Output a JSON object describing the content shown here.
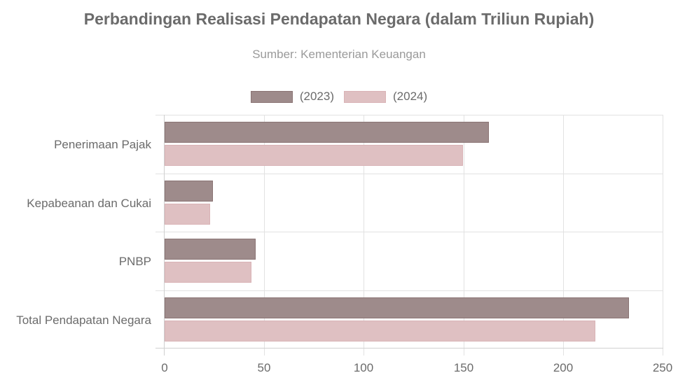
{
  "chart_data": {
    "type": "bar",
    "orientation": "horizontal",
    "title": "Perbandingan Realisasi Pendapatan Negara (dalam Triliun Rupiah)",
    "subtitle": "Sumber: Kementerian Keuangan",
    "categories": [
      "Penerimaan Pajak",
      "Kepabeanan dan Cukai",
      "PNBP",
      "Total Pendapatan Negara"
    ],
    "series": [
      {
        "name": "(2023)",
        "values": [
          162.4,
          24.1,
          45.7,
          232.4
        ],
        "color": "#9e8b8b",
        "border": "#8a7474"
      },
      {
        "name": "(2024)",
        "values": [
          149.4,
          22.9,
          43.4,
          215.6
        ],
        "color": "#dfc0c2",
        "border": "#d9b3b6"
      }
    ],
    "xlabel": "",
    "ylabel": "",
    "xlim": [
      0,
      250
    ],
    "xticks": [
      "0",
      "50",
      "100",
      "150",
      "200",
      "250"
    ],
    "grid": true,
    "legend_position": "top"
  }
}
